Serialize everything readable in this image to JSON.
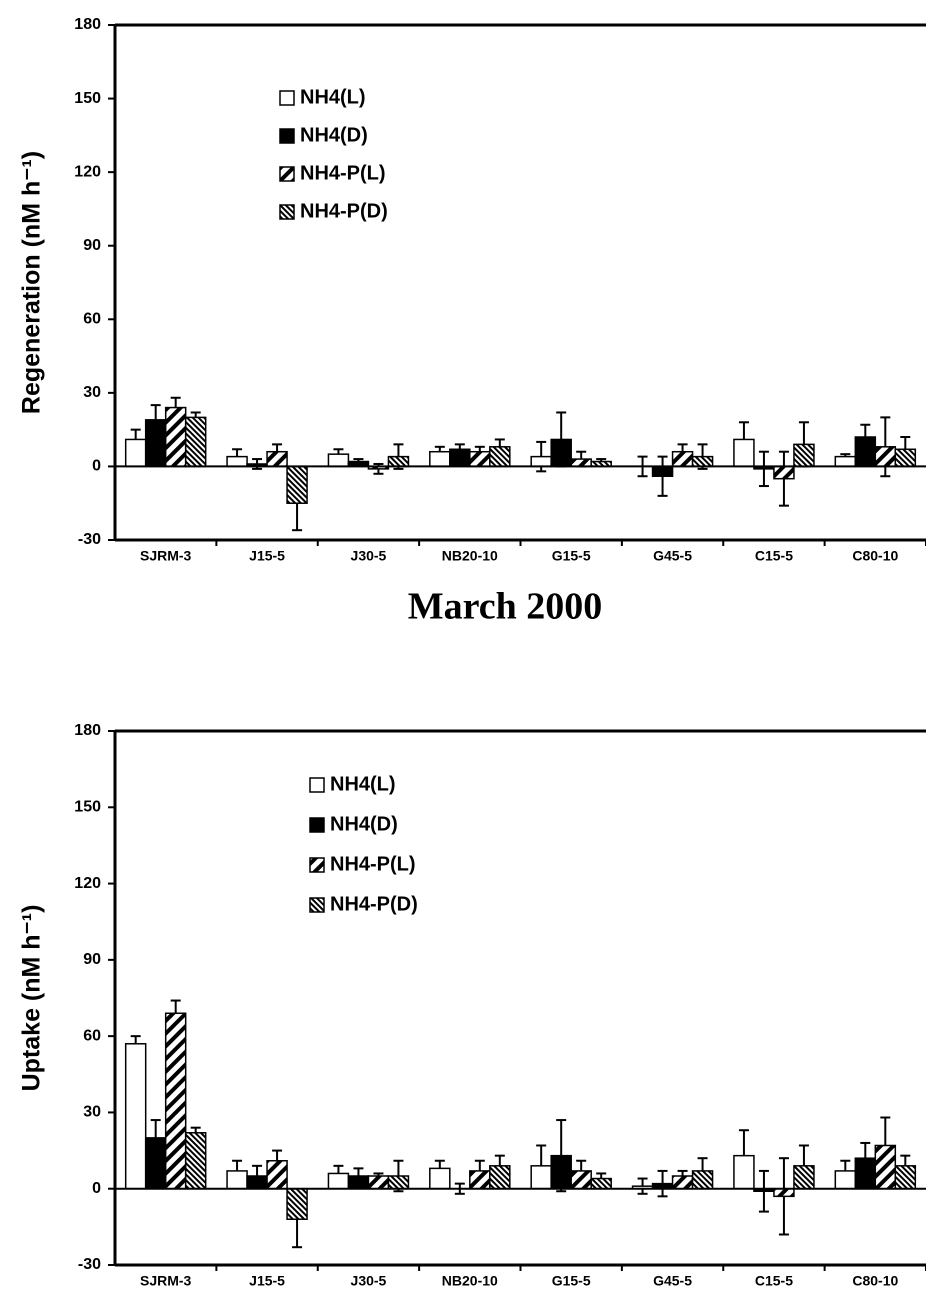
{
  "chart_data": [
    {
      "type": "bar",
      "ylabel": "Regeneration (nM h⁻¹)",
      "categories": [
        "SJRM-3",
        "J15-5",
        "J30-5",
        "NB20-10",
        "G15-5",
        "G45-5",
        "C15-5",
        "C80-10"
      ],
      "series": [
        {
          "name": "NH4(L)",
          "color": "#ffffff",
          "hatch": "none",
          "values": [
            11,
            4,
            5,
            6,
            4,
            0,
            11,
            4
          ],
          "errors": [
            4,
            3,
            2,
            2,
            6,
            4,
            7,
            1
          ]
        },
        {
          "name": "NH4(D)",
          "color": "#000000",
          "hatch": "none",
          "values": [
            19,
            1,
            2,
            7,
            11,
            -4,
            -1,
            12
          ],
          "errors": [
            6,
            2,
            1,
            2,
            11,
            8,
            7,
            5
          ]
        },
        {
          "name": "NH4-P(L)",
          "color": "#ffffff",
          "hatch": "wide",
          "values": [
            24,
            6,
            -1,
            6,
            3,
            6,
            -5,
            8
          ],
          "errors": [
            4,
            3,
            2,
            2,
            3,
            3,
            11,
            12
          ]
        },
        {
          "name": "NH4-P(D)",
          "color": "#ffffff",
          "hatch": "dense",
          "values": [
            20,
            -15,
            4,
            8,
            2,
            4,
            9,
            7
          ],
          "errors": [
            2,
            11,
            5,
            3,
            1,
            5,
            9,
            5
          ]
        }
      ],
      "ylim": [
        -30,
        180
      ],
      "yticks": [
        -30,
        0,
        30,
        60,
        90,
        120,
        150,
        180
      ],
      "legend": "upper-left"
    },
    {
      "type": "bar",
      "title": "March 2000",
      "ylabel": "Uptake (nM h⁻¹)",
      "categories": [
        "SJRM-3",
        "J15-5",
        "J30-5",
        "NB20-10",
        "G15-5",
        "G45-5",
        "C15-5",
        "C80-10"
      ],
      "series": [
        {
          "name": "NH4(L)",
          "color": "#ffffff",
          "hatch": "none",
          "values": [
            57,
            7,
            6,
            8,
            9,
            1,
            13,
            7
          ],
          "errors": [
            3,
            4,
            3,
            3,
            8,
            3,
            10,
            4
          ]
        },
        {
          "name": "NH4(D)",
          "color": "#000000",
          "hatch": "none",
          "values": [
            20,
            5,
            5,
            0,
            13,
            2,
            -1,
            12
          ],
          "errors": [
            7,
            4,
            3,
            2,
            14,
            5,
            8,
            6
          ]
        },
        {
          "name": "NH4-P(L)",
          "color": "#ffffff",
          "hatch": "wide",
          "values": [
            69,
            11,
            5,
            7,
            7,
            5,
            -3,
            17
          ],
          "errors": [
            5,
            4,
            1,
            4,
            4,
            2,
            15,
            11
          ]
        },
        {
          "name": "NH4-P(D)",
          "color": "#ffffff",
          "hatch": "dense",
          "values": [
            22,
            -12,
            5,
            9,
            4,
            7,
            9,
            9
          ],
          "errors": [
            2,
            11,
            6,
            4,
            2,
            5,
            8,
            4
          ]
        }
      ],
      "ylim": [
        -30,
        180
      ],
      "yticks": [
        -30,
        0,
        30,
        60,
        90,
        120,
        150,
        180
      ],
      "legend": "upper-left"
    }
  ]
}
